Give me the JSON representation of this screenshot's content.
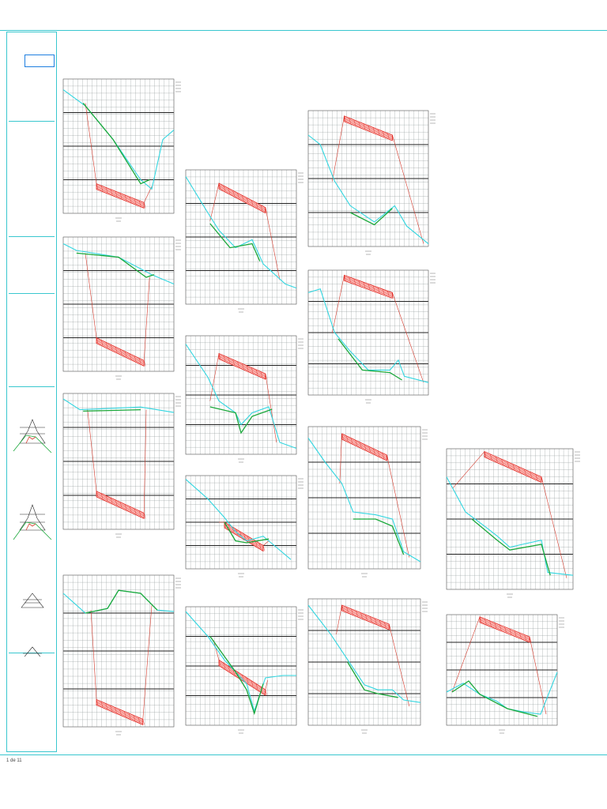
{
  "sheet": {
    "footer_code": "1 de 11"
  },
  "title_block": {
    "header_lines": [
      "",
      "",
      "",
      "",
      "",
      ""
    ],
    "section_titles": [
      "",
      "",
      "",
      ""
    ]
  },
  "colors": {
    "frame": "#39c7cf",
    "grid_line": "#9aa0a0",
    "grid_major": "#222222",
    "terrain": "#31d6e0",
    "design_profile": "#1aa83a",
    "slope_line": "#d33a2c",
    "red_block": "#e0201a"
  },
  "profiles": [
    {
      "terrain": [
        [
          0,
          0.92
        ],
        [
          0.2,
          0.8
        ],
        [
          0.45,
          0.55
        ],
        [
          0.7,
          0.25
        ],
        [
          0.8,
          0.18
        ],
        [
          0.9,
          0.55
        ],
        [
          1,
          0.62
        ]
      ],
      "green": [
        [
          0.18,
          0.82
        ],
        [
          0.45,
          0.55
        ],
        [
          0.7,
          0.22
        ],
        [
          0.78,
          0.25
        ]
      ],
      "block": [
        [
          0.3,
          0.22
        ],
        [
          0.73,
          0.08
        ]
      ],
      "slopeL": [
        [
          0.2,
          0.82
        ],
        [
          0.3,
          0.22
        ]
      ],
      "slopeR": [
        [
          0.73,
          0.08
        ],
        [
          0.8,
          0.2
        ]
      ]
    },
    {
      "terrain": [
        [
          0,
          0.95
        ],
        [
          0.12,
          0.9
        ],
        [
          0.5,
          0.85
        ],
        [
          0.8,
          0.72
        ],
        [
          1,
          0.65
        ]
      ],
      "green": [
        [
          0.12,
          0.88
        ],
        [
          0.5,
          0.85
        ],
        [
          0.75,
          0.7
        ],
        [
          0.82,
          0.72
        ]
      ],
      "block": [
        [
          0.3,
          0.25
        ],
        [
          0.73,
          0.08
        ]
      ],
      "slopeL": [
        [
          0.2,
          0.88
        ],
        [
          0.3,
          0.25
        ]
      ],
      "slopeR": [
        [
          0.73,
          0.08
        ],
        [
          0.78,
          0.7
        ]
      ]
    },
    {
      "terrain": [
        [
          0,
          0.96
        ],
        [
          0.15,
          0.88
        ],
        [
          0.7,
          0.9
        ],
        [
          1,
          0.86
        ]
      ],
      "green": [
        [
          0.18,
          0.87
        ],
        [
          0.7,
          0.88
        ]
      ],
      "block": [
        [
          0.3,
          0.28
        ],
        [
          0.73,
          0.12
        ]
      ],
      "slopeL": [
        [
          0.22,
          0.88
        ],
        [
          0.3,
          0.28
        ]
      ],
      "slopeR": [
        [
          0.73,
          0.12
        ],
        [
          0.75,
          0.88
        ]
      ]
    },
    {
      "terrain": [
        [
          0,
          0.88
        ],
        [
          0.2,
          0.75
        ],
        [
          0.4,
          0.78
        ],
        [
          0.5,
          0.9
        ],
        [
          0.7,
          0.88
        ],
        [
          0.85,
          0.77
        ],
        [
          1,
          0.76
        ]
      ],
      "green": [
        [
          0.2,
          0.75
        ],
        [
          0.4,
          0.78
        ],
        [
          0.5,
          0.9
        ],
        [
          0.7,
          0.88
        ],
        [
          0.85,
          0.77
        ]
      ],
      "block": [
        [
          0.3,
          0.18
        ],
        [
          0.72,
          0.05
        ]
      ],
      "slopeL": [
        [
          0.25,
          0.77
        ],
        [
          0.3,
          0.18
        ]
      ],
      "slopeR": [
        [
          0.72,
          0.05
        ],
        [
          0.8,
          0.8
        ]
      ]
    },
    {
      "terrain": [
        [
          0,
          0.95
        ],
        [
          0.2,
          0.68
        ],
        [
          0.3,
          0.55
        ],
        [
          0.45,
          0.42
        ],
        [
          0.6,
          0.48
        ],
        [
          0.7,
          0.3
        ],
        [
          0.9,
          0.15
        ],
        [
          1,
          0.12
        ]
      ],
      "green": [
        [
          0.22,
          0.6
        ],
        [
          0.4,
          0.42
        ],
        [
          0.6,
          0.45
        ],
        [
          0.67,
          0.32
        ]
      ],
      "block": [
        [
          0.3,
          0.9
        ],
        [
          0.72,
          0.72
        ]
      ],
      "slopeL": [
        [
          0.22,
          0.62
        ],
        [
          0.3,
          0.9
        ]
      ],
      "slopeR": [
        [
          0.72,
          0.72
        ],
        [
          0.85,
          0.18
        ]
      ]
    },
    {
      "terrain": [
        [
          0,
          0.93
        ],
        [
          0.2,
          0.65
        ],
        [
          0.3,
          0.45
        ],
        [
          0.45,
          0.35
        ],
        [
          0.5,
          0.25
        ],
        [
          0.6,
          0.35
        ],
        [
          0.75,
          0.4
        ],
        [
          0.85,
          0.1
        ],
        [
          1,
          0.05
        ]
      ],
      "green": [
        [
          0.22,
          0.4
        ],
        [
          0.45,
          0.35
        ],
        [
          0.5,
          0.18
        ],
        [
          0.6,
          0.32
        ],
        [
          0.78,
          0.38
        ]
      ],
      "block": [
        [
          0.3,
          0.85
        ],
        [
          0.72,
          0.68
        ]
      ],
      "slopeL": [
        [
          0.22,
          0.45
        ],
        [
          0.3,
          0.85
        ]
      ],
      "slopeR": [
        [
          0.72,
          0.68
        ],
        [
          0.82,
          0.1
        ]
      ]
    },
    {
      "terrain": [
        [
          0,
          0.96
        ],
        [
          0.2,
          0.75
        ],
        [
          0.35,
          0.55
        ],
        [
          0.45,
          0.4
        ],
        [
          0.55,
          0.3
        ],
        [
          0.7,
          0.35
        ],
        [
          0.8,
          0.25
        ],
        [
          0.95,
          0.1
        ]
      ],
      "green": [
        [
          0.35,
          0.5
        ],
        [
          0.45,
          0.3
        ],
        [
          0.55,
          0.28
        ],
        [
          0.75,
          0.32
        ]
      ],
      "block": [
        [
          0.35,
          0.5
        ],
        [
          0.7,
          0.25
        ]
      ],
      "slopeL": [
        [
          0.3,
          0.5
        ],
        [
          0.35,
          0.5
        ]
      ],
      "slopeR": [
        [
          0.7,
          0.25
        ],
        [
          0.75,
          0.3
        ]
      ]
    },
    {
      "terrain": [
        [
          0,
          0.96
        ],
        [
          0.2,
          0.75
        ],
        [
          0.35,
          0.55
        ],
        [
          0.45,
          0.45
        ],
        [
          0.55,
          0.35
        ],
        [
          0.62,
          0.12
        ],
        [
          0.72,
          0.4
        ],
        [
          0.88,
          0.42
        ],
        [
          1,
          0.42
        ]
      ],
      "green": [
        [
          0.22,
          0.75
        ],
        [
          0.45,
          0.45
        ],
        [
          0.55,
          0.3
        ],
        [
          0.62,
          0.1
        ],
        [
          0.7,
          0.35
        ]
      ],
      "block": [
        [
          0.3,
          0.55
        ],
        [
          0.72,
          0.3
        ]
      ],
      "slopeL": [
        [
          0.25,
          0.72
        ],
        [
          0.3,
          0.55
        ]
      ],
      "slopeR": [
        [
          0.72,
          0.3
        ],
        [
          0.74,
          0.38
        ]
      ]
    },
    {
      "terrain": [
        [
          0,
          0.82
        ],
        [
          0.1,
          0.75
        ],
        [
          0.22,
          0.48
        ],
        [
          0.35,
          0.3
        ],
        [
          0.55,
          0.18
        ],
        [
          0.72,
          0.3
        ],
        [
          0.82,
          0.15
        ],
        [
          1,
          0.02
        ]
      ],
      "green": [
        [
          0.35,
          0.25
        ],
        [
          0.55,
          0.16
        ],
        [
          0.7,
          0.28
        ]
      ],
      "block": [
        [
          0.3,
          0.96
        ],
        [
          0.7,
          0.82
        ]
      ],
      "slopeL": [
        [
          0.2,
          0.48
        ],
        [
          0.3,
          0.96
        ]
      ],
      "slopeR": [
        [
          0.7,
          0.82
        ],
        [
          0.96,
          0.02
        ]
      ]
    },
    {
      "terrain": [
        [
          0,
          0.82
        ],
        [
          0.1,
          0.85
        ],
        [
          0.22,
          0.5
        ],
        [
          0.35,
          0.35
        ],
        [
          0.5,
          0.2
        ],
        [
          0.68,
          0.2
        ],
        [
          0.75,
          0.28
        ],
        [
          0.8,
          0.15
        ],
        [
          1,
          0.1
        ]
      ],
      "green": [
        [
          0.25,
          0.45
        ],
        [
          0.45,
          0.2
        ],
        [
          0.68,
          0.18
        ],
        [
          0.78,
          0.12
        ]
      ],
      "block": [
        [
          0.3,
          0.96
        ],
        [
          0.7,
          0.82
        ]
      ],
      "slopeL": [
        [
          0.2,
          0.5
        ],
        [
          0.3,
          0.96
        ]
      ],
      "slopeR": [
        [
          0.7,
          0.82
        ],
        [
          0.96,
          0.1
        ]
      ]
    },
    {
      "terrain": [
        [
          0,
          0.92
        ],
        [
          0.15,
          0.75
        ],
        [
          0.3,
          0.6
        ],
        [
          0.4,
          0.4
        ],
        [
          0.6,
          0.38
        ],
        [
          0.75,
          0.35
        ],
        [
          0.85,
          0.12
        ],
        [
          1,
          0.05
        ]
      ],
      "green": [
        [
          0.4,
          0.35
        ],
        [
          0.6,
          0.35
        ],
        [
          0.75,
          0.3
        ],
        [
          0.85,
          0.1
        ]
      ],
      "block": [
        [
          0.3,
          0.95
        ],
        [
          0.7,
          0.8
        ]
      ],
      "slopeL": [
        [
          0.28,
          0.6
        ],
        [
          0.3,
          0.95
        ]
      ],
      "slopeR": [
        [
          0.7,
          0.8
        ],
        [
          0.9,
          0.08
        ]
      ]
    },
    {
      "terrain": [
        [
          0,
          0.95
        ],
        [
          0.2,
          0.72
        ],
        [
          0.35,
          0.52
        ],
        [
          0.5,
          0.32
        ],
        [
          0.62,
          0.28
        ],
        [
          0.75,
          0.28
        ],
        [
          0.85,
          0.2
        ],
        [
          1,
          0.18
        ]
      ],
      "green": [
        [
          0.35,
          0.5
        ],
        [
          0.5,
          0.28
        ],
        [
          0.62,
          0.25
        ],
        [
          0.8,
          0.22
        ]
      ],
      "block": [
        [
          0.3,
          0.95
        ],
        [
          0.72,
          0.8
        ]
      ],
      "slopeL": [
        [
          0.25,
          0.72
        ],
        [
          0.3,
          0.95
        ]
      ],
      "slopeR": [
        [
          0.72,
          0.8
        ],
        [
          0.9,
          0.15
        ]
      ]
    },
    {
      "terrain": [
        [
          0,
          0.8
        ],
        [
          0.15,
          0.55
        ],
        [
          0.3,
          0.45
        ],
        [
          0.4,
          0.38
        ],
        [
          0.5,
          0.3
        ],
        [
          0.6,
          0.32
        ],
        [
          0.75,
          0.35
        ],
        [
          0.8,
          0.12
        ],
        [
          1,
          0.1
        ]
      ],
      "green": [
        [
          0.2,
          0.5
        ],
        [
          0.4,
          0.35
        ],
        [
          0.5,
          0.28
        ],
        [
          0.75,
          0.32
        ],
        [
          0.82,
          0.1
        ]
      ],
      "block": [
        [
          0.3,
          0.98
        ],
        [
          0.75,
          0.8
        ]
      ],
      "slopeL": [
        [
          0.05,
          0.72
        ],
        [
          0.3,
          0.98
        ]
      ],
      "slopeR": [
        [
          0.75,
          0.8
        ],
        [
          0.95,
          0.08
        ]
      ]
    },
    {
      "terrain": [
        [
          0,
          0.3
        ],
        [
          0.15,
          0.38
        ],
        [
          0.3,
          0.28
        ],
        [
          0.45,
          0.22
        ],
        [
          0.55,
          0.15
        ],
        [
          0.7,
          0.12
        ],
        [
          0.85,
          0.1
        ],
        [
          1,
          0.48
        ]
      ],
      "green": [
        [
          0.05,
          0.3
        ],
        [
          0.2,
          0.4
        ],
        [
          0.3,
          0.28
        ],
        [
          0.55,
          0.15
        ],
        [
          0.82,
          0.08
        ]
      ],
      "block": [
        [
          0.3,
          0.98
        ],
        [
          0.75,
          0.8
        ]
      ],
      "slopeL": [
        [
          0.05,
          0.3
        ],
        [
          0.3,
          0.98
        ]
      ],
      "slopeR": [
        [
          0.75,
          0.8
        ],
        [
          0.9,
          0.1
        ]
      ]
    }
  ]
}
